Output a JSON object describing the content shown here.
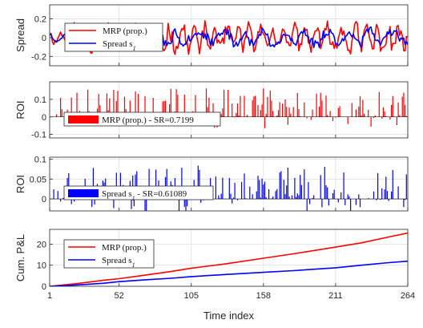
{
  "chart_data": [
    {
      "panel": 1,
      "type": "line",
      "ylabel": "Spread",
      "ylim": [
        -0.3,
        0.35
      ],
      "yticks": [
        -0.2,
        0,
        0.2
      ],
      "ytick_labels": [
        "-0.2",
        "0",
        "0.2"
      ],
      "xlim": [
        1,
        264
      ],
      "xticks": [
        1,
        52,
        105,
        158,
        211,
        264
      ],
      "grid": true,
      "legend_position": "top-left",
      "series": [
        {
          "name": "MRP (prop.)",
          "color": "#ff0000",
          "generator": {
            "seed": 11,
            "amp": 0.11,
            "freq": 0.75,
            "mean": 0.0
          }
        },
        {
          "name": "Spread s1",
          "color": "#0000ff",
          "generator": {
            "seed": 23,
            "amp": 0.07,
            "freq": 0.42,
            "mean": 0.0
          }
        }
      ],
      "legend": [
        {
          "label_prefix": "MRP (prop.)",
          "label_sub": ""
        },
        {
          "label_prefix": "Spread s",
          "label_sub": "1"
        }
      ]
    },
    {
      "panel": 2,
      "type": "bar",
      "ylabel": "ROI",
      "ylim": [
        -0.12,
        0.2
      ],
      "yticks": [
        -0.1,
        0,
        0.1
      ],
      "ytick_labels": [
        "-0.1",
        "0",
        "0.1"
      ],
      "xlim": [
        1,
        264
      ],
      "xticks": [
        1,
        52,
        105,
        158,
        211,
        264
      ],
      "grid": true,
      "legend_position": "bottom-left",
      "series": [
        {
          "name": "MRP (prop.) - SR=0.7199",
          "color": "#ff0000",
          "generator": {
            "seed": 37,
            "scale": 0.07,
            "neg_frac": 0.18
          }
        }
      ],
      "legend": [
        {
          "label_prefix": "MRP (prop.) - SR=0.7199",
          "label_sub": ""
        }
      ]
    },
    {
      "panel": 3,
      "type": "bar",
      "ylabel": "ROI",
      "ylim": [
        -0.03,
        0.105
      ],
      "yticks": [
        0,
        0.05,
        0.1
      ],
      "ytick_labels": [
        "0",
        "0.05",
        "0.1"
      ],
      "xlim": [
        1,
        264
      ],
      "xticks": [
        1,
        52,
        105,
        158,
        211,
        264
      ],
      "grid": true,
      "legend_position": "bottom-left",
      "series": [
        {
          "name": "Spread s1 - SR=0.61089",
          "color": "#0000ff",
          "generator": {
            "seed": 53,
            "scale": 0.035,
            "neg_frac": 0.2
          }
        }
      ],
      "legend": [
        {
          "label_prefix": "Spread s",
          "label_sub": "1",
          "label_suffix": " - SR=0.61089"
        }
      ]
    },
    {
      "panel": 4,
      "type": "line",
      "ylabel": "Cum. P&L",
      "xlabel": "Time index",
      "ylim": [
        0,
        27
      ],
      "yticks": [
        0,
        10,
        20
      ],
      "ytick_labels": [
        "0",
        "10",
        "20"
      ],
      "xlim": [
        1,
        264
      ],
      "xticks": [
        1,
        52,
        105,
        158,
        211,
        264
      ],
      "xtick_labels": [
        "1",
        "52",
        "105",
        "158",
        "211",
        "264"
      ],
      "grid": true,
      "legend_position": "top-left",
      "series": [
        {
          "name": "MRP (prop.)",
          "color": "#ff0000",
          "x": [
            1,
            20,
            40,
            52,
            70,
            90,
            105,
            130,
            158,
            180,
            211,
            230,
            250,
            264
          ],
          "y": [
            0,
            1.2,
            2.8,
            3.6,
            5.2,
            7.0,
            8.6,
            10.6,
            13.3,
            15.4,
            18.6,
            20.6,
            23.4,
            25.3
          ]
        },
        {
          "name": "Spread s1",
          "color": "#0000ff",
          "x": [
            1,
            20,
            40,
            52,
            70,
            90,
            105,
            130,
            158,
            180,
            211,
            230,
            250,
            264
          ],
          "y": [
            0,
            0.6,
            1.4,
            2.2,
            3.0,
            3.8,
            4.6,
            5.6,
            6.6,
            7.4,
            8.8,
            10.0,
            11.2,
            11.9
          ]
        }
      ],
      "legend": [
        {
          "label_prefix": "MRP (prop.)",
          "label_sub": ""
        },
        {
          "label_prefix": "Spread s",
          "label_sub": "1"
        }
      ]
    }
  ]
}
